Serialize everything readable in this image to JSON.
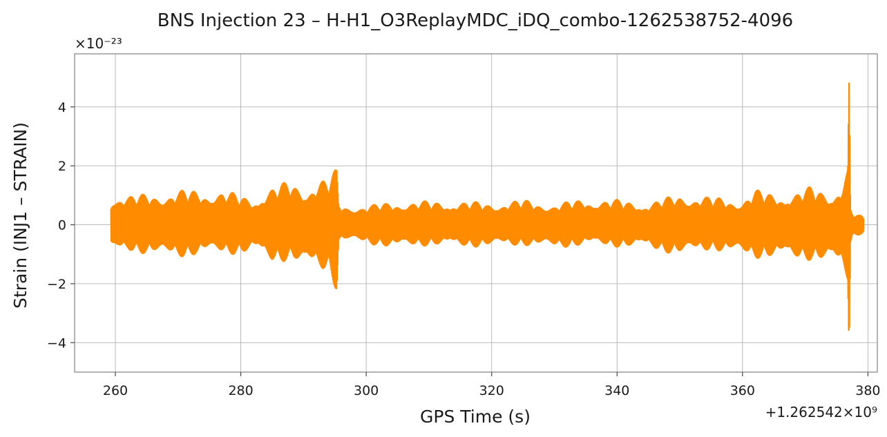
{
  "chart_data": {
    "type": "line",
    "title": "BNS Injection 23 – H-H1_O3ReplayMDC_iDQ_combo-1262538752-4096",
    "xlabel": "GPS Time (s)",
    "ylabel": "Strain (INJ1 – STRAIN)",
    "x_offset_label": "+1.262542×10⁹",
    "y_scale_label": "×10⁻²³",
    "xlim": [
      253.5,
      381.5
    ],
    "ylim": [
      -5.0,
      5.8
    ],
    "x_ticks": [
      260,
      280,
      300,
      320,
      340,
      360,
      380
    ],
    "x_tick_labels": [
      "260",
      "280",
      "300",
      "320",
      "340",
      "360",
      "380"
    ],
    "y_ticks": [
      -4,
      -2,
      0,
      2,
      4
    ],
    "y_tick_labels": [
      "−4",
      "−2",
      "0",
      "2",
      "4"
    ],
    "grid": true,
    "line_color": "#ff8c00",
    "series": [
      {
        "envelope": {
          "x": [
            259.3,
            260,
            262,
            265,
            268,
            271,
            274,
            277,
            280,
            282,
            285,
            288,
            290,
            292,
            294,
            295.3,
            295.6,
            297,
            300,
            305,
            310,
            315,
            320,
            325,
            330,
            335,
            340,
            345,
            350,
            355,
            360,
            362,
            365,
            368,
            371,
            374,
            376,
            376.8,
            377.0,
            377.2,
            377.3,
            377.5,
            378,
            379,
            379.3
          ],
          "upper": [
            0.9,
            1.1,
            1.0,
            1.05,
            1.1,
            1.2,
            1.15,
            1.2,
            1.0,
            0.9,
            1.3,
            1.5,
            1.3,
            1.5,
            1.6,
            1.95,
            0.75,
            0.65,
            0.65,
            0.8,
            0.8,
            0.8,
            0.75,
            0.85,
            0.7,
            0.9,
            0.85,
            0.75,
            1.05,
            0.95,
            0.85,
            1.2,
            1.05,
            1.1,
            1.3,
            1.1,
            1.5,
            2.0,
            5.35,
            0.6,
            0.55,
            0.45,
            0.35,
            0.3,
            0.25
          ],
          "lower": [
            -0.9,
            -1.0,
            -0.9,
            -1.0,
            -1.1,
            -1.1,
            -1.0,
            -1.0,
            -1.0,
            -0.9,
            -1.3,
            -1.2,
            -1.5,
            -1.5,
            -1.6,
            -2.3,
            -0.6,
            -0.55,
            -0.65,
            -0.8,
            -0.7,
            -0.75,
            -0.75,
            -0.7,
            -0.8,
            -0.7,
            -0.75,
            -0.8,
            -1.05,
            -0.85,
            -1.05,
            -1.15,
            -1.1,
            -1.2,
            -1.2,
            -1.3,
            -1.6,
            -2.0,
            -4.55,
            -0.7,
            -0.6,
            -0.45,
            -0.4,
            -0.3,
            -0.25
          ]
        }
      }
    ]
  }
}
